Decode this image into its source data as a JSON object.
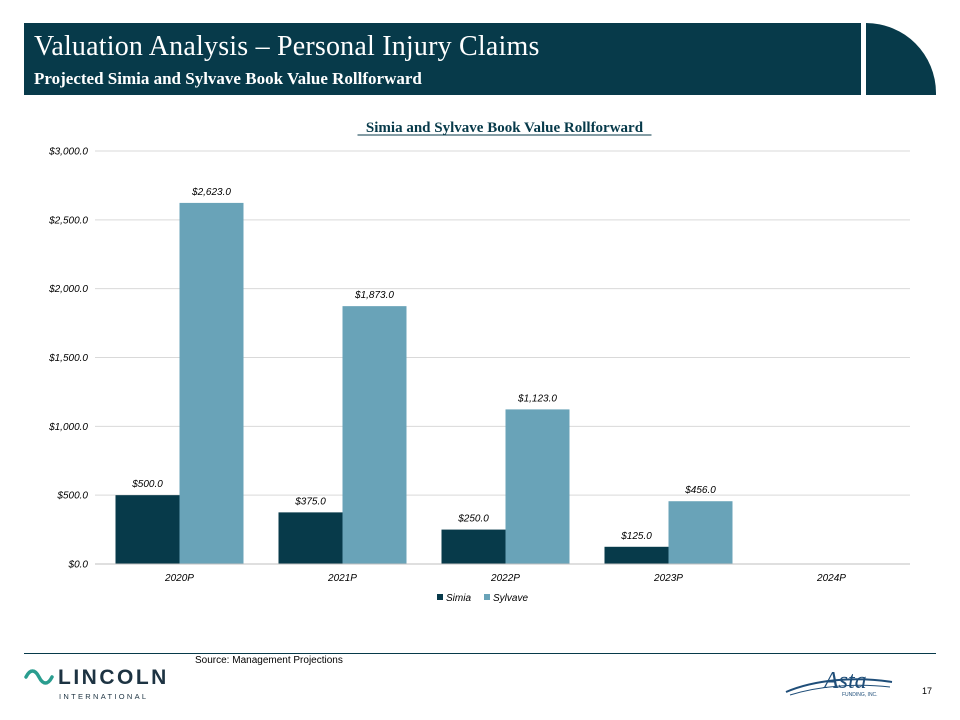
{
  "header": {
    "title": "Valuation Analysis – Personal Injury Claims",
    "subtitle": "Projected Simia and Sylvave Book Value Rollforward"
  },
  "colors": {
    "header_bg": "#073a4a",
    "simia": "#073a4a",
    "sylvave": "#69a3b8",
    "gridline": "#d9d9d9"
  },
  "chart_data": {
    "type": "bar",
    "title": "Simia and Sylvave Book Value Rollforward",
    "categories": [
      "2020P",
      "2021P",
      "2022P",
      "2023P",
      "2024P"
    ],
    "series": [
      {
        "name": "Simia",
        "values": [
          500.0,
          375.0,
          250.0,
          125.0,
          null
        ],
        "labels": [
          "$500.0",
          "$375.0",
          "$250.0",
          "$125.0",
          ""
        ]
      },
      {
        "name": "Sylvave",
        "values": [
          2623.0,
          1873.0,
          1123.0,
          456.0,
          null
        ],
        "labels": [
          "$2,623.0",
          "$1,873.0",
          "$1,123.0",
          "$456.0",
          ""
        ]
      }
    ],
    "ylim": [
      0,
      3000
    ],
    "yticks": [
      0,
      500,
      1000,
      1500,
      2000,
      2500,
      3000
    ],
    "ytick_labels": [
      "$0.0",
      "$500.0",
      "$1,000.0",
      "$1,500.0",
      "$2,000.0",
      "$2,500.0",
      "$3,000.0"
    ],
    "xlabel": "",
    "ylabel": "",
    "grid": true,
    "legend": "bottom"
  },
  "footer": {
    "source": "Source: Management Projections",
    "page_number": "17",
    "lincoln_name": "LINCOLN",
    "lincoln_sub": "INTERNATIONAL",
    "asta_logo_text": "Asta",
    "asta_sub": "FUNDING, INC."
  }
}
